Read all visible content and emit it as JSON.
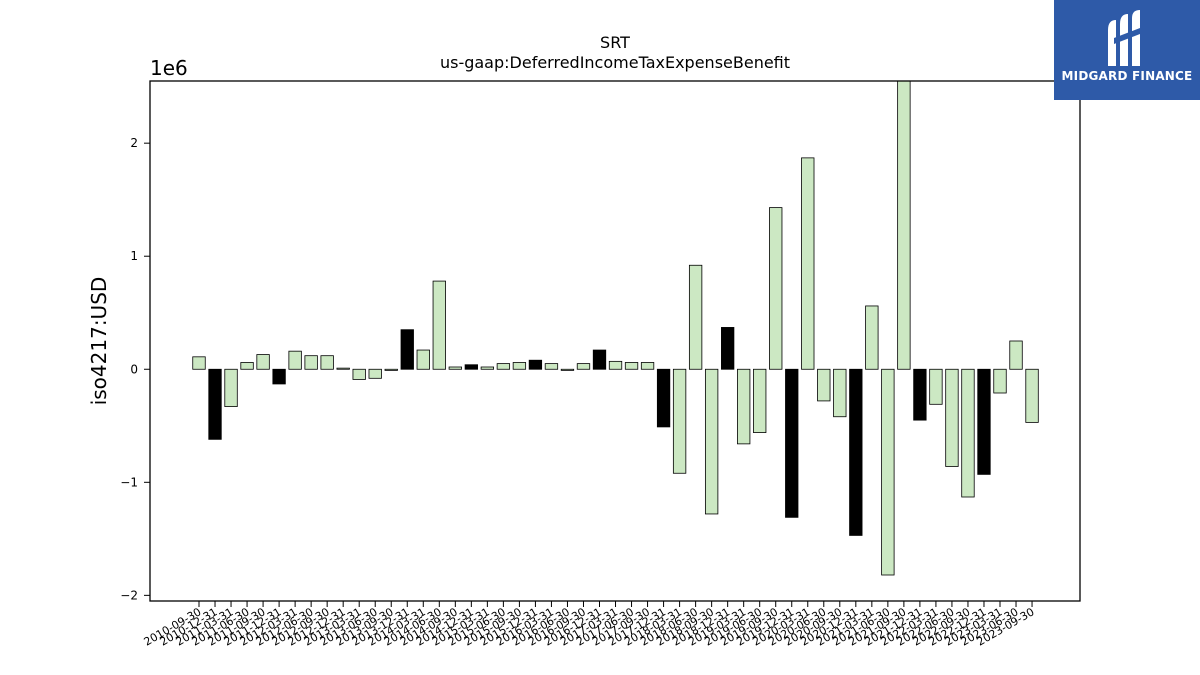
{
  "brand": {
    "name": "MIDGARD FINANCE",
    "icon": "midgard-m-logo-icon",
    "background": "#2e5aa8"
  },
  "chart_data": {
    "type": "bar",
    "title": "SRT",
    "subtitle": "us-gaap:DeferredIncomeTaxExpenseBenefit",
    "xlabel": "",
    "ylabel": "iso4217:USD",
    "y_scale_label": "1e6",
    "ylim": [
      -2.05,
      2.55
    ],
    "y_ticks": [
      -2,
      -1,
      0,
      1,
      2
    ],
    "grid": false,
    "colors": {
      "highlight": "#000000",
      "normal": "#cce8c3",
      "edge": "#000000"
    },
    "categories": [
      "2010-09-30",
      "2010-12-31",
      "2011-03-31",
      "2011-06-30",
      "2011-09-30",
      "2011-12-31",
      "2012-03-31",
      "2012-06-30",
      "2012-09-30",
      "2012-12-31",
      "2013-03-31",
      "2013-06-30",
      "2013-09-30",
      "2013-12-31",
      "2014-03-31",
      "2014-06-30",
      "2014-09-30",
      "2014-12-31",
      "2015-03-31",
      "2015-06-30",
      "2015-09-30",
      "2015-12-31",
      "2016-03-31",
      "2016-06-30",
      "2016-09-30",
      "2016-12-31",
      "2017-03-31",
      "2017-06-30",
      "2017-09-30",
      "2017-12-31",
      "2018-03-31",
      "2018-06-30",
      "2018-09-30",
      "2018-12-31",
      "2019-03-31",
      "2019-06-30",
      "2019-09-30",
      "2019-12-31",
      "2020-03-31",
      "2020-06-30",
      "2020-09-30",
      "2020-12-31",
      "2021-03-31",
      "2021-06-30",
      "2021-09-30",
      "2021-12-31",
      "2022-03-31",
      "2022-06-30",
      "2022-09-30",
      "2022-12-31",
      "2023-03-31",
      "2023-06-30",
      "2023-09-30"
    ],
    "values": [
      0.11,
      -0.62,
      -0.33,
      0.06,
      0.13,
      -0.13,
      0.16,
      0.12,
      0.12,
      0.01,
      -0.09,
      -0.08,
      -0.01,
      0.35,
      0.17,
      0.78,
      0.02,
      0.04,
      0.02,
      0.05,
      0.06,
      0.08,
      0.05,
      -0.01,
      0.05,
      0.17,
      0.07,
      0.06,
      0.06,
      -0.51,
      -0.92,
      0.92,
      -1.28,
      0.37,
      -0.66,
      -0.56,
      1.43,
      -1.31,
      1.87,
      -0.28,
      -0.42,
      -1.47,
      0.56,
      -1.82,
      2.55,
      -0.45,
      -0.31,
      -0.86,
      -1.13,
      -0.93,
      -0.21,
      0.25,
      -0.47
    ],
    "highlighted": [
      1,
      5,
      13,
      17,
      21,
      25,
      29,
      33,
      37,
      41,
      45,
      49
    ]
  }
}
